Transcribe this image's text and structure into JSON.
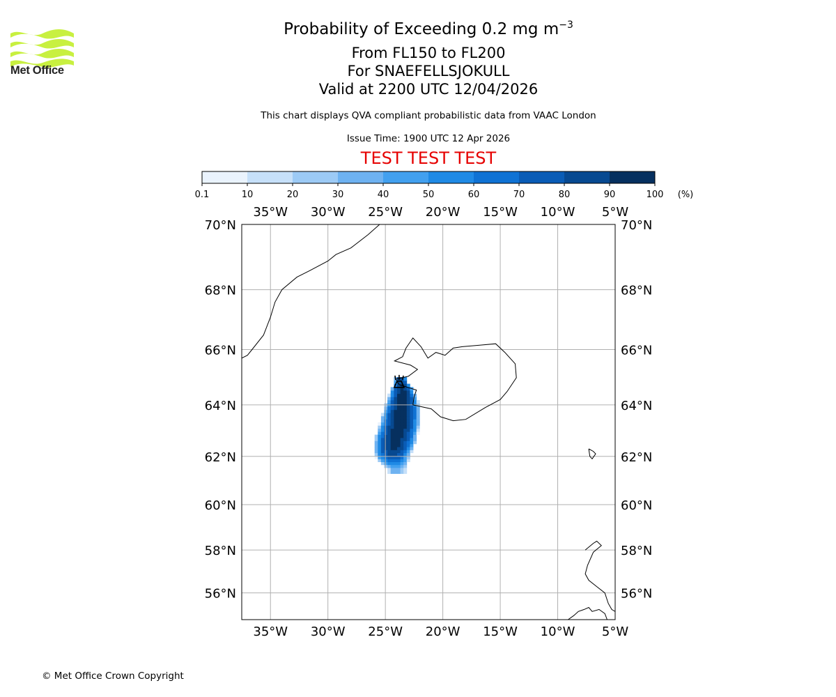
{
  "branding": {
    "logo_text": "Met Office",
    "copyright": "© Met Office Crown Copyright"
  },
  "header": {
    "title": "Probability of Exceeding 0.2 mg m",
    "title_exponent": "−3",
    "flight_levels": "From FL150 to FL200",
    "volcano": "For SNAEFELLSJOKULL",
    "valid_time": "Valid at 2200 UTC 12/04/2026",
    "description": "This chart displays QVA compliant probabilistic data from VAAC London",
    "issue_time": "Issue Time: 1900 UTC 12 Apr 2026",
    "test_banner": "TEST TEST TEST"
  },
  "colors": {
    "test_banner": "#e60000",
    "logo_green": "#c8f040",
    "grid": "#b0b0b0",
    "coastline": "#000000"
  },
  "chart_data": {
    "type": "heatmap",
    "variable": "Probability of exceeding 0.2 mg m-3 volcanic ash concentration",
    "units": "%",
    "colorbar": {
      "boundaries": [
        0.1,
        10,
        20,
        30,
        40,
        50,
        60,
        70,
        80,
        90,
        100
      ],
      "tick_labels": [
        "0.1",
        "10",
        "20",
        "30",
        "40",
        "50",
        "60",
        "70",
        "80",
        "90",
        "100"
      ],
      "colors": [
        "#eaf3fd",
        "#c6e0f9",
        "#9ccaf5",
        "#6eb2f1",
        "#42a0ef",
        "#1f8ae5",
        "#0f72d4",
        "#0a5cb6",
        "#074991",
        "#06305f"
      ],
      "units_label": "(%)"
    },
    "axes": {
      "lon_range": [
        -37.5,
        -5.0
      ],
      "lat_range": [
        54.7,
        70.0
      ],
      "lon_ticks": [
        -35,
        -30,
        -25,
        -20,
        -15,
        -10,
        -5
      ],
      "lon_tick_labels": [
        "35°W",
        "30°W",
        "25°W",
        "20°W",
        "15°W",
        "10°W",
        "5°W"
      ],
      "lat_ticks": [
        70,
        68,
        66,
        64,
        62,
        60,
        58,
        56
      ],
      "lat_tick_labels": [
        "70°N",
        "68°N",
        "66°N",
        "64°N",
        "62°N",
        "60°N",
        "58°N",
        "56°N"
      ],
      "grid": true
    },
    "source_marker": {
      "name": "SNAEFELLSJOKULL",
      "lon": -23.8,
      "lat": 64.8
    },
    "plume_profile": [
      {
        "lat": 64.9,
        "center_lon": -23.65,
        "width_deg": 0.9,
        "peak": 88
      },
      {
        "lat": 64.6,
        "center_lon": -23.55,
        "width_deg": 1.7,
        "peak": 93
      },
      {
        "lat": 64.3,
        "center_lon": -23.5,
        "width_deg": 2.2,
        "peak": 96
      },
      {
        "lat": 64.0,
        "center_lon": -23.55,
        "width_deg": 2.6,
        "peak": 97
      },
      {
        "lat": 63.6,
        "center_lon": -23.65,
        "width_deg": 2.9,
        "peak": 97
      },
      {
        "lat": 63.2,
        "center_lon": -23.8,
        "width_deg": 3.1,
        "peak": 96
      },
      {
        "lat": 62.8,
        "center_lon": -24.05,
        "width_deg": 3.2,
        "peak": 95
      },
      {
        "lat": 62.4,
        "center_lon": -24.25,
        "width_deg": 3.1,
        "peak": 93
      },
      {
        "lat": 62.1,
        "center_lon": -24.35,
        "width_deg": 2.8,
        "peak": 85
      },
      {
        "lat": 61.8,
        "center_lon": -24.3,
        "width_deg": 2.3,
        "peak": 65
      },
      {
        "lat": 61.5,
        "center_lon": -24.0,
        "width_deg": 1.5,
        "peak": 35
      }
    ],
    "coastlines": [
      {
        "name": "Greenland east coast",
        "points": [
          [
            -37.5,
            65.7
          ],
          [
            -37.0,
            65.8
          ],
          [
            -36.6,
            66.0
          ],
          [
            -35.6,
            66.5
          ],
          [
            -35.0,
            67.1
          ],
          [
            -34.6,
            67.6
          ],
          [
            -34.0,
            68.0
          ],
          [
            -32.7,
            68.4
          ],
          [
            -31.6,
            68.6
          ],
          [
            -30.0,
            68.9
          ],
          [
            -29.3,
            69.1
          ],
          [
            -28.0,
            69.3
          ],
          [
            -26.5,
            69.7
          ],
          [
            -25.5,
            70.0
          ]
        ]
      },
      {
        "name": "Iceland",
        "points": [
          [
            -22.6,
            64.0
          ],
          [
            -22.5,
            64.3
          ],
          [
            -22.3,
            64.55
          ],
          [
            -23.8,
            64.75
          ],
          [
            -24.1,
            64.95
          ],
          [
            -23.0,
            65.05
          ],
          [
            -22.2,
            65.3
          ],
          [
            -22.8,
            65.45
          ],
          [
            -24.2,
            65.6
          ],
          [
            -23.5,
            65.75
          ],
          [
            -23.2,
            66.05
          ],
          [
            -22.6,
            66.4
          ],
          [
            -21.9,
            66.1
          ],
          [
            -21.3,
            65.7
          ],
          [
            -20.6,
            65.9
          ],
          [
            -19.8,
            65.8
          ],
          [
            -19.1,
            66.05
          ],
          [
            -18.3,
            66.1
          ],
          [
            -16.8,
            66.15
          ],
          [
            -15.4,
            66.2
          ],
          [
            -14.6,
            65.9
          ],
          [
            -13.7,
            65.5
          ],
          [
            -13.6,
            65.0
          ],
          [
            -14.4,
            64.5
          ],
          [
            -15.0,
            64.2
          ],
          [
            -16.3,
            63.9
          ],
          [
            -18.0,
            63.45
          ],
          [
            -19.1,
            63.4
          ],
          [
            -20.2,
            63.55
          ],
          [
            -21.0,
            63.85
          ],
          [
            -22.6,
            64.0
          ]
        ]
      },
      {
        "name": "Faroe Islands",
        "points": [
          [
            -7.3,
            62.3
          ],
          [
            -6.9,
            62.2
          ],
          [
            -6.7,
            62.1
          ],
          [
            -7.0,
            61.9
          ],
          [
            -7.2,
            62.0
          ],
          [
            -7.3,
            62.3
          ]
        ]
      },
      {
        "name": "Scotland & Hebrides",
        "points": [
          [
            -7.6,
            58.0
          ],
          [
            -6.9,
            58.3
          ],
          [
            -6.6,
            58.4
          ],
          [
            -6.2,
            58.2
          ],
          [
            -6.9,
            57.9
          ],
          [
            -7.4,
            57.3
          ],
          [
            -7.6,
            56.9
          ],
          [
            -7.3,
            56.6
          ],
          [
            -6.6,
            56.3
          ],
          [
            -5.9,
            56.0
          ],
          [
            -5.6,
            55.5
          ],
          [
            -5.3,
            55.2
          ],
          [
            -5.0,
            55.1
          ]
        ]
      },
      {
        "name": "Northern Ireland",
        "points": [
          [
            -9.1,
            54.7
          ],
          [
            -8.6,
            54.9
          ],
          [
            -8.2,
            55.1
          ],
          [
            -7.7,
            55.2
          ],
          [
            -7.3,
            55.3
          ],
          [
            -7.0,
            55.1
          ],
          [
            -6.4,
            55.2
          ],
          [
            -5.9,
            55.0
          ],
          [
            -5.7,
            54.7
          ]
        ]
      }
    ]
  }
}
